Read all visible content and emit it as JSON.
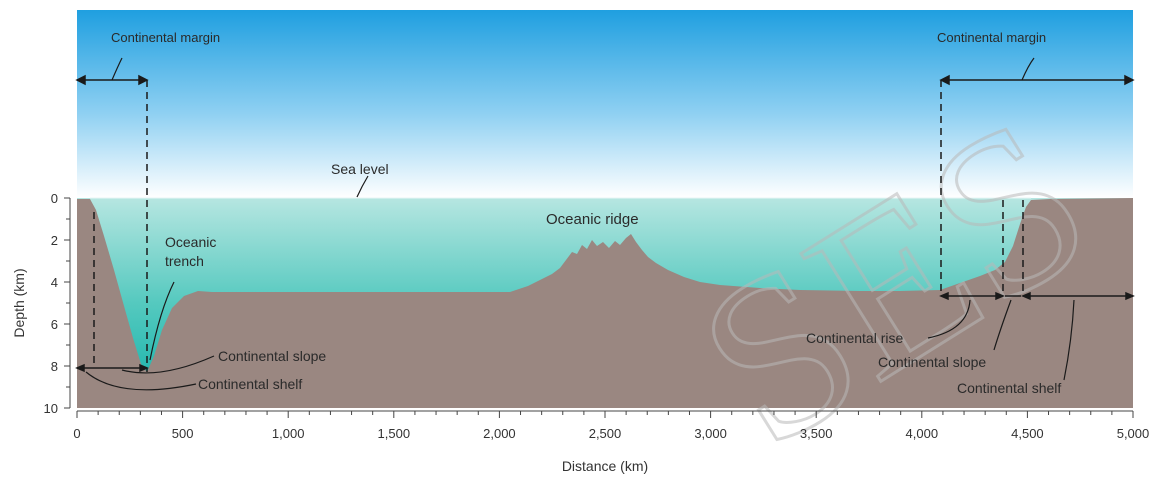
{
  "diagram": {
    "labels": {
      "margin_left": "Continental margin",
      "margin_right": "Continental margin",
      "sea_level": "Sea level",
      "ridge": "Oceanic ridge",
      "trench_line1": "Oceanic",
      "trench_line2": "trench",
      "slope_left": "Continental slope",
      "shelf_left": "Continental shelf",
      "rise_right": "Continental rise",
      "slope_right": "Continental slope",
      "shelf_right": "Continental shelf"
    },
    "axes": {
      "x_label": "Distance (km)",
      "y_label": "Depth (km)",
      "x_ticks": [
        "0",
        "500",
        "1,000",
        "1,500",
        "2,000",
        "2,500",
        "3,000",
        "3,500",
        "4,000",
        "4,500",
        "5,000"
      ],
      "y_ticks": [
        "0",
        "2",
        "4",
        "6",
        "8",
        "10"
      ]
    },
    "watermark": "SES",
    "colors": {
      "sky_top": "#1f9fe0",
      "sky_bottom": "#ffffff",
      "water_top": "#a9e2dc",
      "water_bottom": "#12b3aa",
      "seafloor": "#9a8781",
      "line": "#1a1a1a"
    }
  }
}
